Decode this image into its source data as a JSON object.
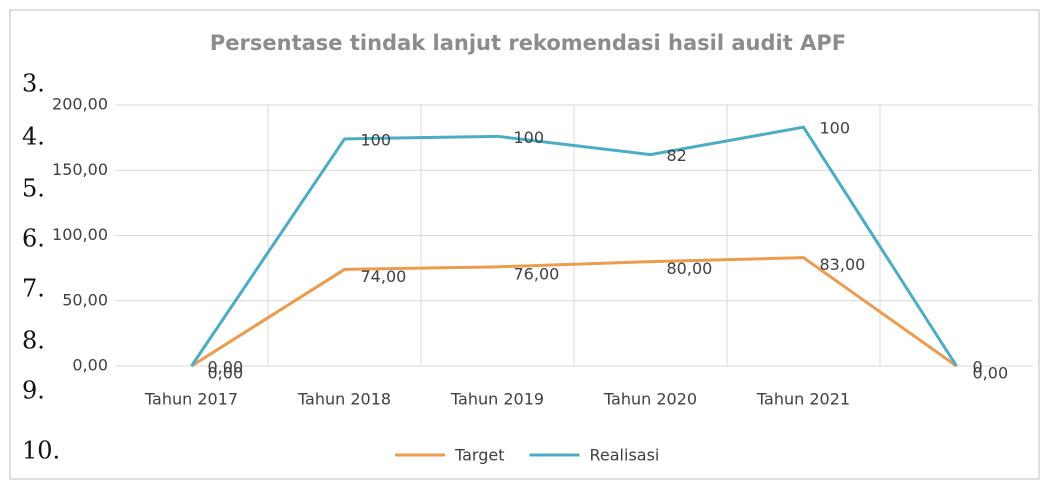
{
  "margin_numbers": [
    "3.",
    "4.",
    "5.",
    "6.",
    "7.",
    "8.",
    "9.",
    "10."
  ],
  "chart_data": {
    "type": "line",
    "stacked": true,
    "title": "Persentase tindak lanjut rekomendasi hasil audit APF",
    "categories": [
      "Tahun 2017",
      "Tahun 2018",
      "Tahun 2019",
      "Tahun 2020",
      "Tahun 2021",
      null
    ],
    "series": [
      {
        "name": "Target",
        "color": "#ED9B4F",
        "values": [
          0,
          74,
          76,
          80,
          83,
          0
        ],
        "value_labels": [
          "0,00",
          "74,00",
          "76,00",
          "80,00",
          "83,00",
          "0,00"
        ]
      },
      {
        "name": "Realisasi",
        "color": "#4BACC6",
        "values": [
          0,
          100,
          100,
          82,
          100,
          0
        ],
        "value_labels": [
          "0,00",
          "100",
          "100",
          "82",
          "100",
          "0"
        ]
      }
    ],
    "ylim": [
      0,
      200
    ],
    "yticks": [
      {
        "value": 0,
        "label": "0,00"
      },
      {
        "value": 50,
        "label": "50,00"
      },
      {
        "value": 100,
        "label": "100,00"
      },
      {
        "value": 150,
        "label": "150,00"
      },
      {
        "value": 200,
        "label": "200,00"
      }
    ],
    "grid": true,
    "legend": "bottom"
  }
}
